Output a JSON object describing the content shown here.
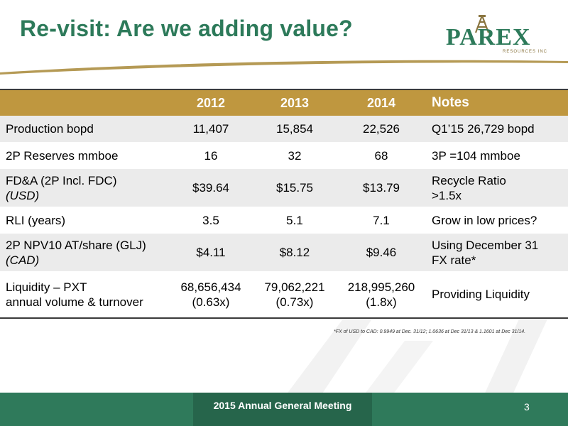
{
  "title": "Re-visit: Are we adding value?",
  "logo": {
    "name": "PAREX",
    "subtitle": "RESOURCES INC"
  },
  "colors": {
    "title_green": "#2d7a5a",
    "header_gold": "#bf973f",
    "footer_green": "#2f7a5b"
  },
  "table": {
    "headers": [
      "",
      "2012",
      "2013",
      "2014",
      "Notes"
    ],
    "rows": [
      {
        "label_line1": "Production bopd",
        "label_line2": "",
        "v2012": "11,407",
        "v2012_sub": "",
        "v2013": "15,854",
        "v2013_sub": "",
        "v2014": "22,526",
        "v2014_sub": "",
        "note_line1": "Q1’15 26,729 bopd",
        "note_line2": ""
      },
      {
        "label_line1": "2P Reserves mmboe",
        "label_line2": "",
        "v2012": "16",
        "v2012_sub": "",
        "v2013": "32",
        "v2013_sub": "",
        "v2014": "68",
        "v2014_sub": "",
        "note_line1": "3P =104 mmboe",
        "note_line2": ""
      },
      {
        "label_line1": "FD&A (2P Incl. FDC)",
        "label_line2": "(USD)",
        "v2012": "$39.64",
        "v2012_sub": "",
        "v2013": "$15.75",
        "v2013_sub": "",
        "v2014": "$13.79",
        "v2014_sub": "",
        "note_line1": "Recycle Ratio",
        "note_line2": ">1.5x"
      },
      {
        "label_line1": "RLI (years)",
        "label_line2": "",
        "v2012": "3.5",
        "v2012_sub": "",
        "v2013": "5.1",
        "v2013_sub": "",
        "v2014": "7.1",
        "v2014_sub": "",
        "note_line1": "Grow in low prices?",
        "note_line2": ""
      },
      {
        "label_line1": "2P NPV10 AT/share (GLJ)",
        "label_line2": "(CAD)",
        "v2012": "$4.11",
        "v2012_sub": "",
        "v2013": "$8.12",
        "v2013_sub": "",
        "v2014": "$9.46",
        "v2014_sub": "",
        "note_line1": "Using December 31",
        "note_line2": "FX rate*"
      },
      {
        "label_line1": "Liquidity – PXT",
        "label_line2": "annual volume & turnover",
        "v2012": "68,656,434",
        "v2012_sub": "(0.63x)",
        "v2013": "79,062,221",
        "v2013_sub": "(0.73x)",
        "v2014": "218,995,260",
        "v2014_sub": "(1.8x)",
        "note_line1": "Providing Liquidity",
        "note_line2": ""
      }
    ]
  },
  "footnote": "*FX of USD to CAD: 0.9949 at Dec. 31/12; 1.0636 at Dec 31/13 & 1.1601 at Dec 31/14.",
  "footer": {
    "title": "2015 Annual General Meeting",
    "page_number": "3"
  }
}
